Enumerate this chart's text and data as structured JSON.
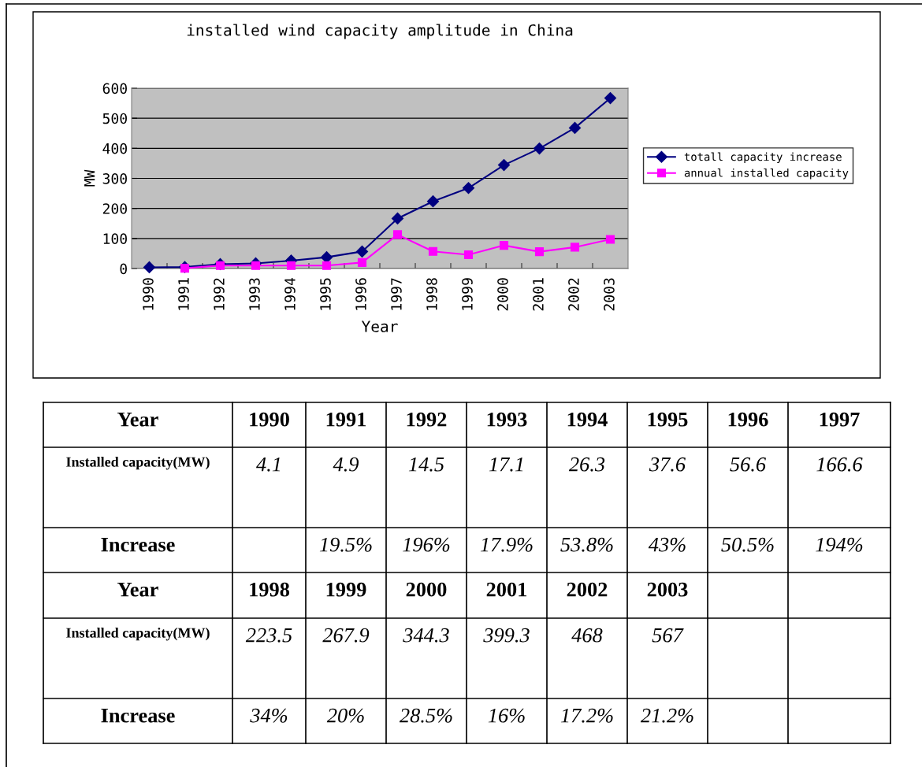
{
  "chart_data": {
    "type": "line",
    "title": "installed wind capacity amplitude in China",
    "xlabel": "Year",
    "ylabel": "MW",
    "categories": [
      "1990",
      "1991",
      "1992",
      "1993",
      "1994",
      "1995",
      "1996",
      "1997",
      "1998",
      "1999",
      "2000",
      "2001",
      "2002",
      "2003"
    ],
    "series": [
      {
        "name": "totall capacity increase",
        "color": "#000080",
        "marker": "diamond",
        "values": [
          4.1,
          4.9,
          14.5,
          17.1,
          26.3,
          37.6,
          56.6,
          166.6,
          223.5,
          267.9,
          344.3,
          399.3,
          468,
          567
        ]
      },
      {
        "name": "annual installed capacity",
        "color": "#ff00ff",
        "marker": "square",
        "values": [
          null,
          1,
          10,
          10,
          10,
          10,
          20,
          113,
          57,
          46,
          77,
          56,
          71,
          97
        ]
      }
    ],
    "ylim": [
      0,
      600
    ],
    "yticks": [
      0,
      100,
      200,
      300,
      400,
      500,
      600
    ],
    "grid": "y",
    "legend": "right",
    "annotations": [
      "Year",
      "Installed capacity(MW)",
      "Increase",
      "4.1",
      "4.9",
      "14.5",
      "17.1",
      "26.3",
      "37.6",
      "56.6",
      "166.6",
      "223.5",
      "267.9",
      "344.3",
      "399.3",
      "468",
      "567",
      "19.5%",
      "196%",
      "17.9%",
      "53.8%",
      "43%",
      "50.5%",
      "194%",
      "34%",
      "20%",
      "28.5%",
      "16%",
      "17.2%",
      "21.2%"
    ]
  }
}
